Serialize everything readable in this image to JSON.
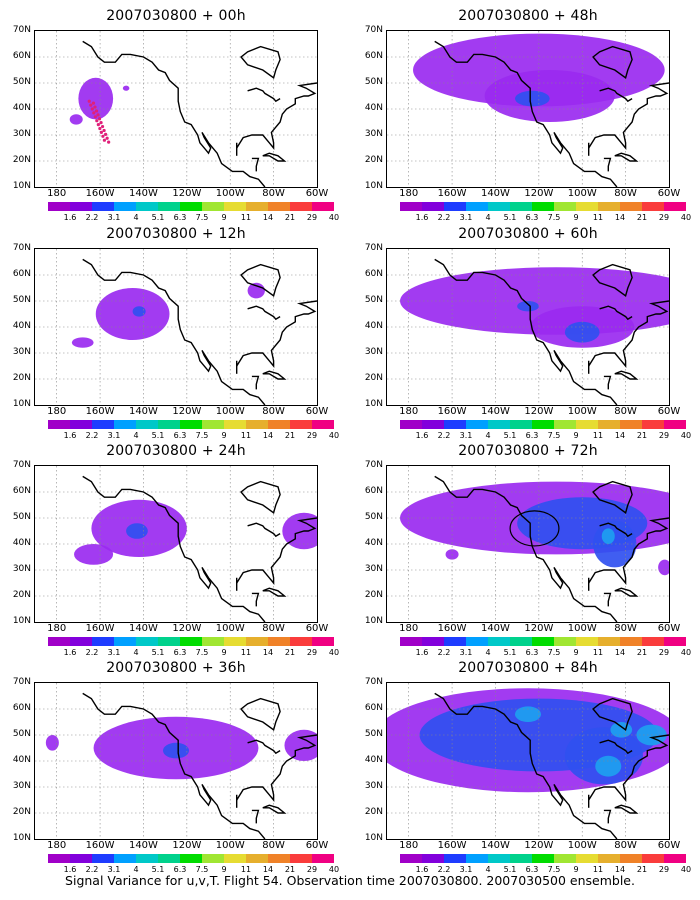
{
  "panels": [
    {
      "title": "2007030800 + 00h",
      "col": 0,
      "row": 0,
      "blobs": [
        {
          "x": -162,
          "y": 44,
          "rx": 8,
          "ry": 8,
          "c": "#9a2af0"
        },
        {
          "x": -171,
          "y": 36,
          "rx": 3,
          "ry": 2,
          "c": "#9a2af0"
        },
        {
          "x": -148,
          "y": 48,
          "rx": 1.5,
          "ry": 1,
          "c": "#9a2af0"
        }
      ],
      "track": true,
      "circle": null
    },
    {
      "title": "2007030800 + 12h",
      "col": 0,
      "row": 1,
      "blobs": [
        {
          "x": -145,
          "y": 45,
          "rx": 17,
          "ry": 10,
          "c": "#9a2af0"
        },
        {
          "x": -168,
          "y": 34,
          "rx": 5,
          "ry": 2,
          "c": "#9a2af0"
        },
        {
          "x": -88,
          "y": 54,
          "rx": 4,
          "ry": 3,
          "c": "#9a2af0"
        },
        {
          "x": -142,
          "y": 46,
          "rx": 3,
          "ry": 2,
          "c": "#3050f0"
        }
      ],
      "track": false,
      "circle": null
    },
    {
      "title": "2007030800 + 24h",
      "col": 0,
      "row": 2,
      "blobs": [
        {
          "x": -142,
          "y": 46,
          "rx": 22,
          "ry": 11,
          "c": "#9a2af0"
        },
        {
          "x": -163,
          "y": 36,
          "rx": 9,
          "ry": 4,
          "c": "#9a2af0"
        },
        {
          "x": -66,
          "y": 45,
          "rx": 10,
          "ry": 7,
          "c": "#9a2af0"
        },
        {
          "x": -143,
          "y": 45,
          "rx": 5,
          "ry": 3,
          "c": "#3050f0"
        }
      ],
      "track": false,
      "circle": null
    },
    {
      "title": "2007030800 + 36h",
      "col": 0,
      "row": 3,
      "blobs": [
        {
          "x": -125,
          "y": 45,
          "rx": 38,
          "ry": 12,
          "c": "#9a2af0"
        },
        {
          "x": -182,
          "y": 47,
          "rx": 3,
          "ry": 3,
          "c": "#9a2af0"
        },
        {
          "x": -66,
          "y": 46,
          "rx": 9,
          "ry": 6,
          "c": "#9a2af0"
        },
        {
          "x": -125,
          "y": 44,
          "rx": 6,
          "ry": 3,
          "c": "#3050f0"
        }
      ],
      "track": false,
      "circle": null
    },
    {
      "title": "2007030800 + 48h",
      "col": 1,
      "row": 0,
      "blobs": [
        {
          "x": -120,
          "y": 55,
          "rx": 58,
          "ry": 14,
          "c": "#9a2af0"
        },
        {
          "x": -115,
          "y": 45,
          "rx": 30,
          "ry": 10,
          "c": "#9a2af0"
        },
        {
          "x": -123,
          "y": 44,
          "rx": 8,
          "ry": 3,
          "c": "#3050f0"
        }
      ],
      "track": false,
      "circle": null
    },
    {
      "title": "2007030800 + 60h",
      "col": 1,
      "row": 1,
      "blobs": [
        {
          "x": -112,
          "y": 50,
          "rx": 72,
          "ry": 13,
          "c": "#9a2af0"
        },
        {
          "x": -100,
          "y": 40,
          "rx": 24,
          "ry": 8,
          "c": "#9a2af0"
        },
        {
          "x": -100,
          "y": 38,
          "rx": 8,
          "ry": 4,
          "c": "#3050f0"
        },
        {
          "x": -125,
          "y": 48,
          "rx": 5,
          "ry": 2,
          "c": "#3050f0"
        }
      ],
      "track": false,
      "circle": null
    },
    {
      "title": "2007030800 + 72h",
      "col": 1,
      "row": 2,
      "blobs": [
        {
          "x": -112,
          "y": 50,
          "rx": 72,
          "ry": 14,
          "c": "#9a2af0"
        },
        {
          "x": -100,
          "y": 48,
          "rx": 30,
          "ry": 10,
          "c": "#3050f0"
        },
        {
          "x": -85,
          "y": 40,
          "rx": 10,
          "ry": 9,
          "c": "#3050f0"
        },
        {
          "x": -160,
          "y": 36,
          "rx": 3,
          "ry": 2,
          "c": "#9a2af0"
        },
        {
          "x": -62,
          "y": 31,
          "rx": 3,
          "ry": 3,
          "c": "#9a2af0"
        },
        {
          "x": -88,
          "y": 43,
          "rx": 3,
          "ry": 3,
          "c": "#1ea0f0"
        }
      ],
      "track": false,
      "circle": {
        "x": -122,
        "y": 46,
        "r": 9
      }
    },
    {
      "title": "2007030800 + 84h",
      "col": 1,
      "row": 3,
      "blobs": [
        {
          "x": -125,
          "y": 48,
          "rx": 72,
          "ry": 20,
          "c": "#9a2af0"
        },
        {
          "x": -120,
          "y": 50,
          "rx": 55,
          "ry": 14,
          "c": "#3050f0"
        },
        {
          "x": -90,
          "y": 42,
          "rx": 18,
          "ry": 11,
          "c": "#3050f0"
        },
        {
          "x": -88,
          "y": 38,
          "rx": 6,
          "ry": 4,
          "c": "#1ea0f0"
        },
        {
          "x": -82,
          "y": 52,
          "rx": 5,
          "ry": 3,
          "c": "#1ea0f0"
        },
        {
          "x": -68,
          "y": 50,
          "rx": 7,
          "ry": 4,
          "c": "#1ea0f0"
        },
        {
          "x": -125,
          "y": 58,
          "rx": 6,
          "ry": 3,
          "c": "#1ea0f0"
        }
      ],
      "track": false,
      "circle": null
    }
  ],
  "y_labels": [
    "70N",
    "60N",
    "50N",
    "40N",
    "30N",
    "20N",
    "10N"
  ],
  "x_labels": [
    "180",
    "160W",
    "140W",
    "120W",
    "100W",
    "80W",
    "60W"
  ],
  "colorbar": {
    "colors": [
      "#a000c8",
      "#8200dc",
      "#1e3cff",
      "#00a0ff",
      "#00c8c8",
      "#00d28c",
      "#00dc00",
      "#a0e632",
      "#e6dc32",
      "#e6af2d",
      "#f08228",
      "#fa3c3c",
      "#f00082"
    ],
    "labels": [
      "1.6",
      "2.2",
      "3.1",
      "4",
      "5.1",
      "6.3",
      "7.5",
      "9",
      "11",
      "14",
      "21",
      "29",
      "40"
    ]
  },
  "caption": "Signal Variance for u,v,T. Flight 54. Observation time 2007030800. 2007030500 ensemble."
}
